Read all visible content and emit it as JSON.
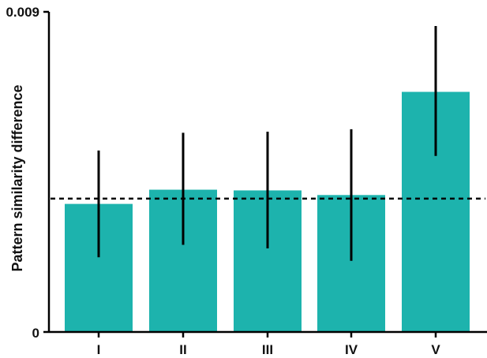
{
  "chart_data": {
    "type": "bar",
    "categories": [
      "I",
      "II",
      "III",
      "IV",
      "V"
    ],
    "values": [
      0.0036,
      0.004,
      0.00398,
      0.00385,
      0.00675
    ],
    "error_bars": {
      "lower": [
        0.0021,
        0.00245,
        0.00235,
        0.002,
        0.00495
      ],
      "upper": [
        0.0051,
        0.0056,
        0.00563,
        0.0057,
        0.0086
      ]
    },
    "reference_line": 0.00375,
    "title": "",
    "xlabel": "",
    "ylabel": "Pattern similarity difference",
    "ylim": [
      0,
      0.009
    ],
    "y_tick_labels": [
      "0",
      "0.009"
    ],
    "grid": false,
    "legend": "none",
    "colors": {
      "bar": "#1db3ad",
      "error_bar": "#000000",
      "reference_line": "#000000",
      "axis": "#000000"
    }
  }
}
